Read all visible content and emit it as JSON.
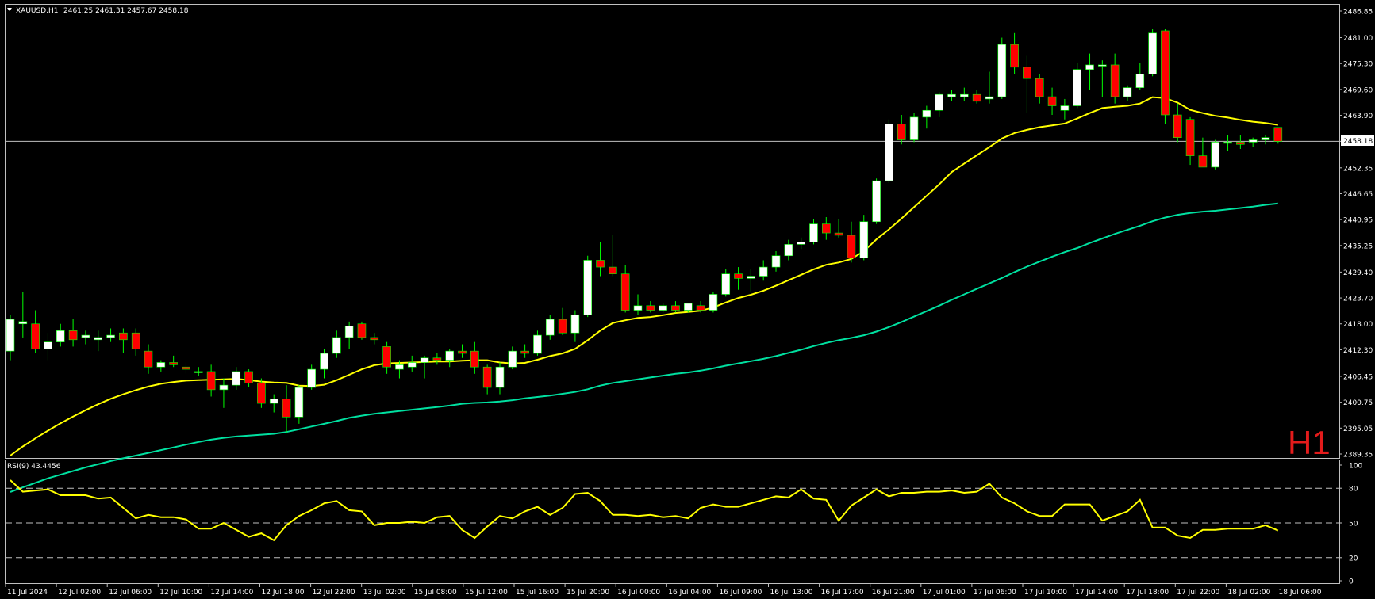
{
  "header": {
    "symbol": "XAUUSD,H1",
    "ohlc": "2461.25 2461.31 2457.67 2458.18"
  },
  "timeframe_badge": "H1",
  "colors": {
    "background": "#000000",
    "frame": "#c0c0c0",
    "bull_body": "#ffffff",
    "bear_body": "#ff0000",
    "wick": "#00ff00",
    "ma_fast": "#ffff00",
    "ma_slow": "#00e0a0",
    "rsi_line": "#ffff00",
    "price_line": "#c0c0c0",
    "badge": "#e31b1b"
  },
  "chart_data": [
    {
      "type": "candlestick",
      "title": "XAUUSD,H1",
      "current_price": "2458.18",
      "y_ticks": [
        "2486.85",
        "2481.00",
        "2475.30",
        "2469.60",
        "2463.90",
        "2458.18",
        "2452.35",
        "2446.65",
        "2440.95",
        "2435.25",
        "2429.40",
        "2423.70",
        "2418.00",
        "2412.30",
        "2406.45",
        "2400.75",
        "2395.05",
        "2389.35"
      ],
      "ylim": [
        2389.35,
        2486.85
      ],
      "x_ticks": [
        "11 Jul 2024",
        "12 Jul 02:00",
        "12 Jul 06:00",
        "12 Jul 10:00",
        "12 Jul 14:00",
        "12 Jul 18:00",
        "12 Jul 22:00",
        "13 Jul 02:00",
        "15 Jul 08:00",
        "15 Jul 12:00",
        "15 Jul 16:00",
        "15 Jul 20:00",
        "16 Jul 00:00",
        "16 Jul 04:00",
        "16 Jul 09:00",
        "16 Jul 13:00",
        "16 Jul 17:00",
        "16 Jul 21:00",
        "17 Jul 01:00",
        "17 Jul 06:00",
        "17 Jul 10:00",
        "17 Jul 14:00",
        "17 Jul 18:00",
        "17 Jul 22:00",
        "18 Jul 02:00",
        "18 Jul 06:00"
      ],
      "candles": [
        [
          2412.0,
          2420.0,
          2410.0,
          2419.0
        ],
        [
          2418.0,
          2425.0,
          2415.0,
          2418.5
        ],
        [
          2418.0,
          2421.0,
          2411.5,
          2412.5
        ],
        [
          2412.5,
          2416.0,
          2410.0,
          2414.0
        ],
        [
          2414.0,
          2418.0,
          2413.0,
          2416.5
        ],
        [
          2416.5,
          2419.0,
          2413.0,
          2414.5
        ],
        [
          2415.0,
          2416.5,
          2413.5,
          2415.5
        ],
        [
          2414.5,
          2416.5,
          2412.0,
          2415.0
        ],
        [
          2415.0,
          2417.0,
          2414.0,
          2415.5
        ],
        [
          2416.0,
          2417.0,
          2411.5,
          2414.5
        ],
        [
          2416.0,
          2417.0,
          2411.0,
          2412.5
        ],
        [
          2412.0,
          2413.5,
          2407.0,
          2408.5
        ],
        [
          2408.5,
          2410.0,
          2407.5,
          2409.5
        ],
        [
          2409.5,
          2411.0,
          2408.5,
          2409.0
        ],
        [
          2408.5,
          2409.5,
          2407.0,
          2408.0
        ],
        [
          2407.5,
          2408.5,
          2406.5,
          2407.5
        ],
        [
          2407.5,
          2409.0,
          2402.0,
          2403.5
        ],
        [
          2403.5,
          2406.0,
          2399.5,
          2404.5
        ],
        [
          2404.5,
          2408.5,
          2403.5,
          2407.5
        ],
        [
          2407.5,
          2408.0,
          2404.0,
          2405.0
        ],
        [
          2405.0,
          2406.0,
          2399.5,
          2400.5
        ],
        [
          2400.5,
          2402.5,
          2398.5,
          2401.5
        ],
        [
          2401.5,
          2404.5,
          2394.0,
          2397.5
        ],
        [
          2397.5,
          2404.5,
          2396.0,
          2404.0
        ],
        [
          2404.0,
          2409.0,
          2403.5,
          2408.0
        ],
        [
          2408.0,
          2412.5,
          2406.0,
          2411.5
        ],
        [
          2411.5,
          2416.5,
          2410.5,
          2415.0
        ],
        [
          2415.0,
          2418.5,
          2412.5,
          2417.5
        ],
        [
          2418.0,
          2418.5,
          2414.5,
          2415.0
        ],
        [
          2415.0,
          2416.0,
          2413.5,
          2414.5
        ],
        [
          2413.0,
          2414.0,
          2407.0,
          2408.5
        ],
        [
          2408.0,
          2410.0,
          2406.0,
          2409.0
        ],
        [
          2408.5,
          2411.0,
          2407.5,
          2409.5
        ],
        [
          2409.5,
          2411.0,
          2406.0,
          2410.5
        ],
        [
          2410.5,
          2411.5,
          2409.0,
          2410.0
        ],
        [
          2410.0,
          2412.5,
          2408.5,
          2412.0
        ],
        [
          2412.0,
          2413.5,
          2410.5,
          2411.5
        ],
        [
          2412.0,
          2414.0,
          2407.0,
          2408.5
        ],
        [
          2408.5,
          2409.0,
          2402.5,
          2404.0
        ],
        [
          2404.0,
          2409.5,
          2402.5,
          2408.5
        ],
        [
          2408.5,
          2413.0,
          2408.0,
          2412.0
        ],
        [
          2412.0,
          2413.5,
          2410.5,
          2411.5
        ],
        [
          2411.5,
          2416.5,
          2411.0,
          2415.5
        ],
        [
          2415.5,
          2420.0,
          2414.5,
          2419.0
        ],
        [
          2419.0,
          2421.5,
          2415.5,
          2416.0
        ],
        [
          2416.0,
          2421.0,
          2414.0,
          2420.0
        ],
        [
          2420.0,
          2433.0,
          2419.5,
          2432.0
        ],
        [
          2432.0,
          2436.0,
          2428.5,
          2430.5
        ],
        [
          2430.5,
          2437.5,
          2428.5,
          2429.0
        ],
        [
          2429.0,
          2431.0,
          2420.5,
          2421.0
        ],
        [
          2421.0,
          2424.5,
          2420.0,
          2422.0
        ],
        [
          2422.0,
          2423.0,
          2420.5,
          2421.0
        ],
        [
          2421.0,
          2422.5,
          2420.5,
          2422.0
        ],
        [
          2422.0,
          2423.0,
          2420.5,
          2421.0
        ],
        [
          2421.0,
          2422.5,
          2420.5,
          2422.5
        ],
        [
          2422.0,
          2423.0,
          2420.5,
          2421.0
        ],
        [
          2421.0,
          2425.0,
          2420.5,
          2424.5
        ],
        [
          2424.5,
          2430.0,
          2424.0,
          2429.0
        ],
        [
          2429.0,
          2430.5,
          2425.5,
          2428.0
        ],
        [
          2428.0,
          2430.0,
          2425.0,
          2428.5
        ],
        [
          2428.5,
          2432.0,
          2427.5,
          2430.5
        ],
        [
          2430.5,
          2434.0,
          2429.5,
          2433.0
        ],
        [
          2433.0,
          2436.5,
          2432.0,
          2435.5
        ],
        [
          2435.5,
          2437.0,
          2434.5,
          2436.0
        ],
        [
          2436.0,
          2441.0,
          2435.5,
          2440.0
        ],
        [
          2440.0,
          2441.5,
          2436.5,
          2438.0
        ],
        [
          2438.0,
          2441.0,
          2437.0,
          2437.5
        ],
        [
          2437.5,
          2440.5,
          2431.5,
          2432.5
        ],
        [
          2432.5,
          2442.0,
          2432.0,
          2440.5
        ],
        [
          2440.5,
          2450.0,
          2440.0,
          2449.5
        ],
        [
          2449.5,
          2463.0,
          2449.0,
          2462.0
        ],
        [
          2462.0,
          2464.0,
          2457.5,
          2458.5
        ],
        [
          2458.5,
          2464.5,
          2458.0,
          2463.5
        ],
        [
          2463.5,
          2466.0,
          2461.0,
          2465.0
        ],
        [
          2465.0,
          2469.0,
          2463.5,
          2468.5
        ],
        [
          2468.0,
          2469.5,
          2467.0,
          2468.5
        ],
        [
          2468.0,
          2470.0,
          2467.0,
          2468.5
        ],
        [
          2468.5,
          2469.5,
          2466.5,
          2467.0
        ],
        [
          2467.5,
          2473.5,
          2466.5,
          2468.0
        ],
        [
          2468.0,
          2481.0,
          2467.5,
          2479.5
        ],
        [
          2479.5,
          2482.0,
          2473.0,
          2474.5
        ],
        [
          2474.5,
          2477.0,
          2464.5,
          2472.0
        ],
        [
          2472.0,
          2473.0,
          2466.5,
          2468.0
        ],
        [
          2468.0,
          2470.0,
          2464.0,
          2466.0
        ],
        [
          2465.0,
          2467.5,
          2463.0,
          2466.0
        ],
        [
          2466.0,
          2475.5,
          2465.5,
          2474.0
        ],
        [
          2474.0,
          2477.5,
          2469.5,
          2475.0
        ],
        [
          2475.0,
          2476.0,
          2468.0,
          2475.0
        ],
        [
          2475.0,
          2477.5,
          2466.5,
          2468.0
        ],
        [
          2468.0,
          2470.5,
          2467.0,
          2470.0
        ],
        [
          2470.0,
          2475.5,
          2469.5,
          2473.0
        ],
        [
          2473.0,
          2483.0,
          2472.5,
          2482.0
        ],
        [
          2482.5,
          2483.0,
          2462.0,
          2464.0
        ],
        [
          2464.0,
          2466.5,
          2458.0,
          2459.0
        ],
        [
          2463.0,
          2463.5,
          2453.0,
          2455.0
        ],
        [
          2455.0,
          2459.0,
          2452.5,
          2452.5
        ],
        [
          2452.5,
          2458.5,
          2452.0,
          2458.0
        ],
        [
          2458.0,
          2459.5,
          2456.0,
          2458.0
        ],
        [
          2458.0,
          2459.5,
          2456.5,
          2457.5
        ],
        [
          2458.0,
          2459.0,
          2457.0,
          2458.5
        ],
        [
          2458.5,
          2459.5,
          2457.5,
          2459.0
        ],
        [
          2461.25,
          2461.31,
          2457.67,
          2458.18
        ]
      ],
      "ma_fast": [
        2389.0,
        2391.0,
        2392.8,
        2394.5,
        2396.1,
        2397.6,
        2399.0,
        2400.3,
        2401.5,
        2402.5,
        2403.4,
        2404.2,
        2404.8,
        2405.2,
        2405.5,
        2405.6,
        2405.7,
        2405.8,
        2405.9,
        2405.6,
        2405.3,
        2405.1,
        2405.0,
        2404.4,
        2404.3,
        2404.6,
        2405.6,
        2406.8,
        2408.0,
        2408.9,
        2409.3,
        2409.4,
        2409.5,
        2409.6,
        2409.7,
        2409.7,
        2409.9,
        2410.0,
        2410.0,
        2409.5,
        2409.3,
        2409.4,
        2410.1,
        2410.9,
        2411.5,
        2412.5,
        2414.4,
        2416.5,
        2418.2,
        2418.8,
        2419.3,
        2419.5,
        2419.9,
        2420.4,
        2420.6,
        2420.9,
        2421.6,
        2422.7,
        2423.7,
        2424.4,
        2425.3,
        2426.4,
        2427.6,
        2428.8,
        2430.0,
        2431.0,
        2431.5,
        2432.3,
        2434.0,
        2436.6,
        2438.8,
        2441.2,
        2443.7,
        2446.2,
        2448.7,
        2451.4,
        2453.3,
        2455.1,
        2456.9,
        2458.8,
        2460.0,
        2460.7,
        2461.3,
        2461.7,
        2462.1,
        2463.2,
        2464.4,
        2465.5,
        2465.8,
        2466.0,
        2466.5,
        2467.9,
        2467.7,
        2466.7,
        2465.1,
        2464.4,
        2463.8,
        2463.4,
        2462.9,
        2462.5,
        2462.2,
        2461.8
      ],
      "ma_slow": [
        2381.0,
        2382.0,
        2383.0,
        2384.0,
        2384.8,
        2385.6,
        2386.4,
        2387.1,
        2387.8,
        2388.4,
        2389.0,
        2389.6,
        2390.2,
        2390.8,
        2391.4,
        2392.0,
        2392.5,
        2392.9,
        2393.2,
        2393.4,
        2393.6,
        2393.8,
        2394.2,
        2394.8,
        2395.4,
        2396.0,
        2396.6,
        2397.3,
        2397.8,
        2398.2,
        2398.5,
        2398.8,
        2399.1,
        2399.4,
        2399.7,
        2400.0,
        2400.4,
        2400.6,
        2400.7,
        2400.9,
        2401.2,
        2401.6,
        2401.9,
        2402.2,
        2402.6,
        2403.0,
        2403.6,
        2404.4,
        2405.0,
        2405.4,
        2405.8,
        2406.2,
        2406.6,
        2407.0,
        2407.3,
        2407.7,
        2408.2,
        2408.8,
        2409.3,
        2409.8,
        2410.3,
        2410.9,
        2411.6,
        2412.3,
        2413.1,
        2413.8,
        2414.4,
        2414.9,
        2415.5,
        2416.3,
        2417.3,
        2418.4,
        2419.6,
        2420.8,
        2422.0,
        2423.3,
        2424.5,
        2425.7,
        2426.9,
        2428.1,
        2429.4,
        2430.6,
        2431.7,
        2432.8,
        2433.8,
        2434.7,
        2435.8,
        2436.8,
        2437.8,
        2438.7,
        2439.6,
        2440.6,
        2441.4,
        2442.0,
        2442.4,
        2442.7,
        2442.9,
        2443.2,
        2443.5,
        2443.8,
        2444.2,
        2444.5
      ]
    },
    {
      "type": "line",
      "title": "RSI(9) 43.4456",
      "y_ticks": [
        "100",
        "80",
        "50",
        "20",
        "0"
      ],
      "ylim": [
        0,
        100
      ],
      "levels": [
        80,
        50,
        20
      ],
      "values": [
        87,
        77,
        78,
        79,
        74,
        74,
        74,
        71,
        72,
        63,
        54,
        57,
        55,
        55,
        53,
        45,
        45,
        50,
        44,
        38,
        41,
        35,
        48,
        56,
        61,
        67,
        69,
        61,
        60,
        48,
        50,
        50,
        51,
        50,
        55,
        56,
        44,
        37,
        47,
        56,
        54,
        60,
        64,
        57,
        63,
        75,
        76,
        69,
        57,
        57,
        56,
        57,
        55,
        56,
        54,
        63,
        66,
        64,
        64,
        67,
        70,
        73,
        72,
        79,
        71,
        70,
        52,
        65,
        72,
        79,
        73,
        76,
        76,
        77,
        77,
        78,
        76,
        77,
        84,
        72,
        67,
        60,
        56,
        56,
        66,
        66,
        66,
        52,
        56,
        60,
        70,
        46,
        46,
        39,
        37,
        44,
        44,
        45,
        45,
        45,
        48,
        43.4456
      ]
    }
  ]
}
